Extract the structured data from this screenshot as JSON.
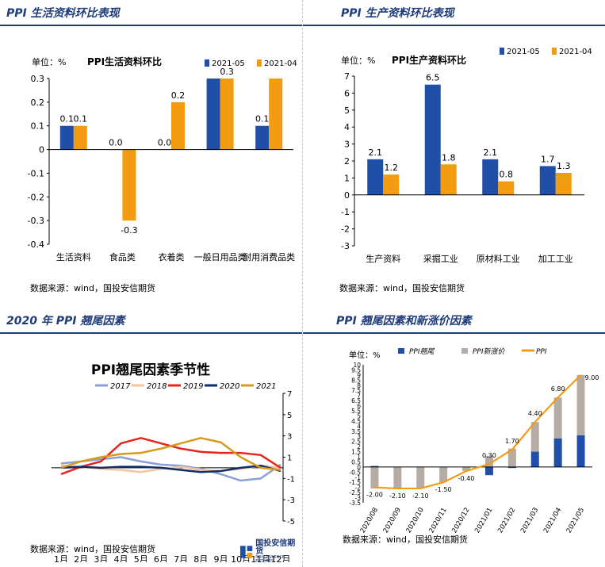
{
  "panels": [
    {
      "title": "PPI 生活资料环比表现",
      "source": "数据来源：wind，国投安信期货"
    },
    {
      "title": "PPI 生产资料环比表现",
      "source": "数据来源：wind，国投安信期货"
    },
    {
      "title": "2020 年 PPI 翘尾因素",
      "source": "数据来源：wind，国投安信期货"
    },
    {
      "title": "PPI 翘尾因素和新涨价因素",
      "source": "数据来源：wind，国投安信期货"
    }
  ],
  "logo": {
    "name": "国投安信期货",
    "sub": "SDIC ESSENCE FUTURES"
  },
  "colors": {
    "blue": "#1f4fa6",
    "orange": "#f39c12",
    "navy": "#1f3c7a"
  },
  "chart_data": [
    {
      "type": "bar",
      "title": "PPI生活资料环比",
      "unit_label": "单位：%",
      "categories": [
        "生活资料",
        "食品类",
        "衣着类",
        "一般日用品类",
        "耐用消费品类"
      ],
      "series": [
        {
          "name": "2021-05",
          "values": [
            0.1,
            0.0,
            0.0,
            0.3,
            0.1
          ]
        },
        {
          "name": "2021-04",
          "values": [
            0.1,
            -0.3,
            0.2,
            0.3,
            0.3
          ]
        }
      ],
      "value_labels": [
        [
          "0.1",
          "0.0",
          "0.0",
          "",
          "0.1"
        ],
        [
          "0.1",
          "-0.3",
          "0.2",
          "0.3",
          ""
        ]
      ],
      "yticks": [
        "0.3",
        "0.2",
        "0.1",
        "0",
        "-0.1",
        "-0.2",
        "-0.3",
        "-0.4"
      ],
      "ylim": [
        -0.4,
        0.3
      ],
      "legend": "top-right"
    },
    {
      "type": "bar",
      "title": "PPI生产资料环比",
      "unit_label": "单位：%",
      "categories": [
        "生产资料",
        "采掘工业",
        "原材料工业",
        "加工工业"
      ],
      "series": [
        {
          "name": "2021-05",
          "values": [
            2.1,
            6.5,
            2.1,
            1.7
          ]
        },
        {
          "name": "2021-04",
          "values": [
            1.2,
            1.8,
            0.8,
            1.3
          ]
        }
      ],
      "value_labels": [
        [
          "2.1",
          "6.5",
          "2.1",
          "1.7"
        ],
        [
          "1.2",
          "1.8",
          "0.8",
          "1.3"
        ]
      ],
      "yticks": [
        "7",
        "6",
        "5",
        "4",
        "3",
        "2",
        "1",
        "0",
        "-1",
        "-2",
        "-3"
      ],
      "ylim": [
        -3,
        7
      ],
      "legend": "top-right"
    },
    {
      "type": "line",
      "title": "PPI翘尾因素季节性",
      "categories": [
        "1月",
        "2月",
        "3月",
        "4月",
        "5月",
        "6月",
        "7月",
        "8月",
        "9月",
        "10月",
        "11月",
        "12月"
      ],
      "series": [
        {
          "name": "2017",
          "color": "#8aa0d6",
          "values": [
            0.4,
            0.6,
            0.8,
            1.0,
            0.6,
            0.3,
            0.2,
            -0.1,
            -0.6,
            -1.2,
            -1.0,
            0.3
          ]
        },
        {
          "name": "2018",
          "color": "#f7c39b",
          "values": [
            0.2,
            0.1,
            -0.1,
            -0.2,
            -0.4,
            -0.1,
            0.1,
            -0.2,
            -0.3,
            -0.1,
            0.2,
            0.0
          ]
        },
        {
          "name": "2019",
          "color": "#e8251d",
          "values": [
            -0.6,
            0.1,
            0.6,
            2.3,
            2.8,
            2.3,
            1.8,
            1.5,
            1.4,
            1.4,
            1.2,
            0.0
          ]
        },
        {
          "name": "2020",
          "color": "#0d2d6b",
          "values": [
            0.0,
            0.1,
            0.0,
            0.1,
            0.1,
            0.0,
            -0.2,
            -0.4,
            -0.3,
            0.0,
            0.2,
            -0.3
          ]
        },
        {
          "name": "2021",
          "color": "#d89a1e",
          "values": [
            0.0,
            0.6,
            1.0,
            1.3,
            1.4,
            1.8,
            2.3,
            2.8,
            2.4,
            1.0,
            0.0,
            -0.2
          ]
        }
      ],
      "yticks": [
        "7",
        "5",
        "3",
        "1",
        "-1",
        "-3",
        "-5"
      ],
      "ylim": [
        -5,
        7
      ],
      "legend": "top"
    },
    {
      "type": "bar+line",
      "unit_label": "单位：%",
      "categories": [
        "2020/08",
        "2020/09",
        "2020/10",
        "2020/11",
        "2020/12",
        "2021/01",
        "2021/02",
        "2021/03",
        "2021/04",
        "2021/05"
      ],
      "series": [
        {
          "name": "PPI翘尾",
          "type": "bar",
          "values": [
            0.1,
            0.0,
            0.0,
            0.0,
            0.0,
            -0.8,
            -0.1,
            1.5,
            2.8,
            3.1
          ]
        },
        {
          "name": "PPI新涨价",
          "type": "bar",
          "values": [
            -2.1,
            -2.1,
            -2.1,
            -1.5,
            -0.4,
            1.1,
            1.8,
            2.9,
            4.0,
            5.9
          ]
        },
        {
          "name": "PPI",
          "type": "line",
          "values": [
            -2.0,
            -2.1,
            -2.1,
            -1.5,
            -0.4,
            0.3,
            1.7,
            4.4,
            6.8,
            9.0
          ]
        }
      ],
      "line_labels": [
        "-2.00",
        "-2.10",
        "-2.10",
        "-1.50",
        "-0.40",
        "0.30",
        "1.70",
        "4.40",
        "6.80",
        "9.00"
      ],
      "yticks": [
        "10",
        "9.5",
        "9",
        "8.5",
        "8",
        "7.5",
        "7",
        "6.5",
        "6",
        "5.5",
        "5",
        "4.5",
        "4",
        "3.5",
        "3",
        "2.5",
        "2",
        "1.5",
        "1",
        "0.5",
        "0",
        "-0.5",
        "-1",
        "-1.5",
        "-2",
        "-2.5",
        "-3",
        "-3.5"
      ],
      "ylim": [
        -3.5,
        10
      ],
      "legend": "top"
    }
  ]
}
